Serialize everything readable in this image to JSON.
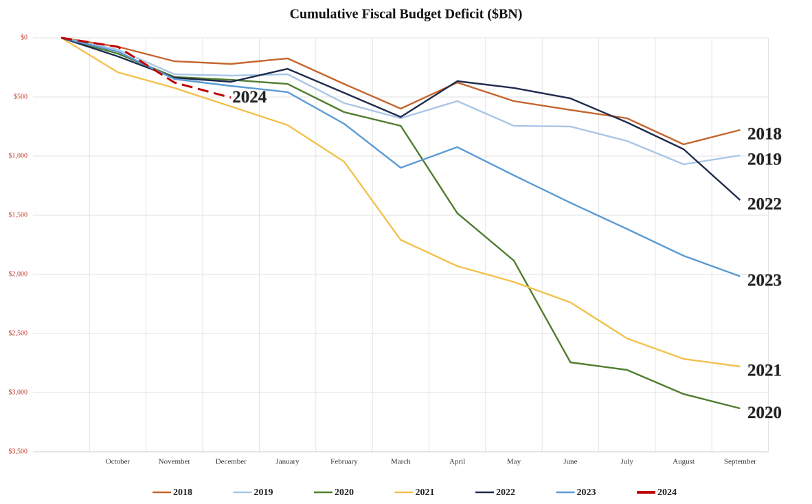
{
  "chart_data": {
    "type": "line",
    "title": "Cumulative Fiscal Budget Deficit ($BN)",
    "categories": [
      null,
      "October",
      "November",
      "December",
      "January",
      "February",
      "March",
      "April",
      "May",
      "June",
      "July",
      "August",
      "September"
    ],
    "ylim": [
      0,
      3500
    ],
    "y_inverted": true,
    "yticks": [
      {
        "value": 0,
        "label": "$0"
      },
      {
        "value": 500,
        "label": "$500"
      },
      {
        "value": 1000,
        "label": "$1,000"
      },
      {
        "value": 1500,
        "label": "$1,500"
      },
      {
        "value": 2000,
        "label": "$2,000"
      },
      {
        "value": 2500,
        "label": "$2,500"
      },
      {
        "value": 3000,
        "label": "$3,000"
      },
      {
        "value": 3500,
        "label": "$3,500"
      }
    ],
    "grid": true,
    "legend": "bottom",
    "series": [
      {
        "name": "2018",
        "color": "#c5652d",
        "values": [
          0,
          75,
          198,
          221,
          174,
          390,
          599,
          378,
          535,
          610,
          680,
          901,
          779
        ]
      },
      {
        "name": "2019",
        "color": "#a9c6e6",
        "values": [
          0,
          100,
          308,
          320,
          308,
          552,
          680,
          535,
          744,
          750,
          872,
          1070,
          994
        ]
      },
      {
        "name": "2020",
        "color": "#4f7d2e",
        "values": [
          0,
          134,
          331,
          355,
          390,
          628,
          744,
          1483,
          1884,
          2744,
          2808,
          3012,
          3134
        ]
      },
      {
        "name": "2021",
        "color": "#f3c14c",
        "values": [
          0,
          291,
          424,
          581,
          738,
          1047,
          1709,
          1930,
          2064,
          2238,
          2541,
          2715,
          2779
        ]
      },
      {
        "name": "2022",
        "color": "#1f2b4d",
        "values": [
          0,
          157,
          337,
          372,
          262,
          465,
          669,
          366,
          424,
          512,
          715,
          942,
          1372
        ]
      },
      {
        "name": "2023",
        "color": "#5b9bd5",
        "values": [
          0,
          116,
          349,
          407,
          459,
          727,
          1099,
          924,
          1163,
          1395,
          1616,
          1843,
          2017
        ]
      },
      {
        "name": "2024",
        "color": "#c00000",
        "dashed": true,
        "values": [
          0,
          76,
          378,
          506,
          null,
          null,
          null,
          null,
          null,
          null,
          null,
          null,
          null
        ]
      }
    ]
  }
}
